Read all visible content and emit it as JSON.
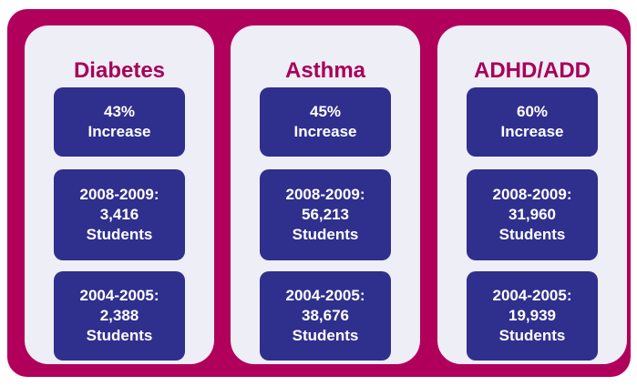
{
  "columns": [
    {
      "title": "Diabetes",
      "boxes": [
        [
          "43%",
          "Increase"
        ],
        [
          "2008-2009:",
          "3,416",
          "Students"
        ],
        [
          "2004-2005:",
          "2,388",
          "Students"
        ]
      ]
    },
    {
      "title": "Asthma",
      "boxes": [
        [
          "45%",
          "Increase"
        ],
        [
          "2008-2009:",
          "56,213",
          "Students"
        ],
        [
          "2004-2005:",
          "38,676",
          "Students"
        ]
      ]
    },
    {
      "title": "ADHD/ADD",
      "boxes": [
        [
          "60%",
          "Increase"
        ],
        [
          "2008-2009:",
          "31,960",
          "Students"
        ],
        [
          "2004-2005:",
          "19,939",
          "Students"
        ]
      ]
    }
  ]
}
